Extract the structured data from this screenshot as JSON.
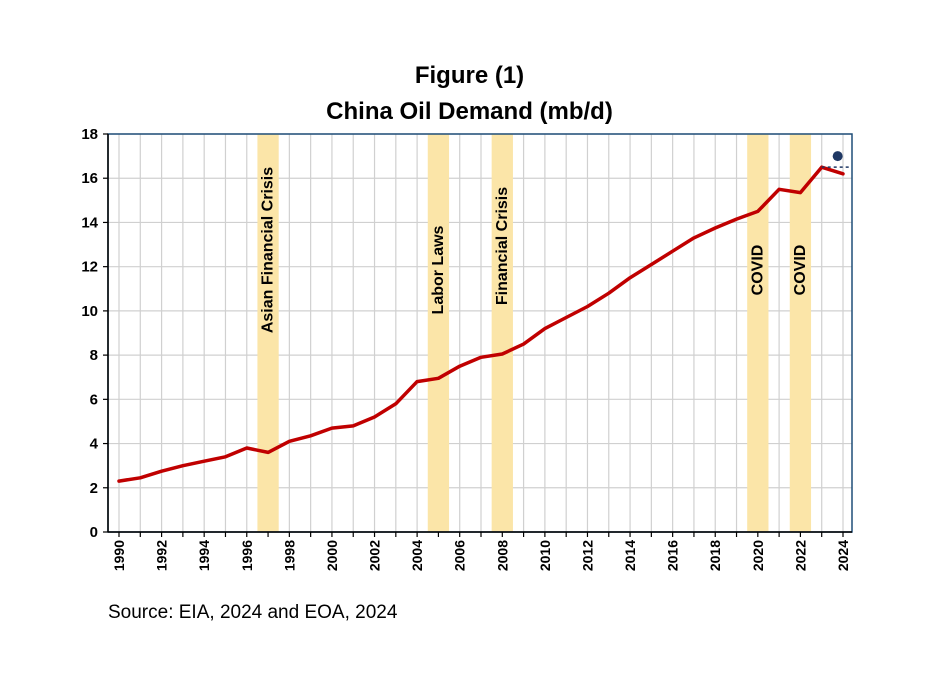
{
  "title_line1": "Figure (1)",
  "title_line2": "China Oil Demand (mb/d)",
  "source": "Source: EIA, 2024 and EOA, 2024",
  "chart_data": {
    "type": "line",
    "title": "Figure (1) China Oil Demand (mb/d)",
    "xlabel": "",
    "ylabel": "",
    "xlim": [
      1990,
      2024
    ],
    "ylim": [
      0,
      18
    ],
    "yticks": [
      0,
      2,
      4,
      6,
      8,
      10,
      12,
      14,
      16,
      18
    ],
    "xtick_labels": [
      "1990",
      "1992",
      "1994",
      "1996",
      "1998",
      "2000",
      "2002",
      "2004",
      "2006",
      "2008",
      "2010",
      "2012",
      "2014",
      "2016",
      "2018",
      "2020",
      "2022",
      "2024"
    ],
    "grid": true,
    "line_color": "#C00000",
    "band_color": "#FBE5A8",
    "series": [
      {
        "x": [
          1990,
          1991,
          1992,
          1993,
          1994,
          1995,
          1996,
          1997,
          1998,
          1999,
          2000,
          2001,
          2002,
          2003,
          2004,
          2005,
          2006,
          2007,
          2008,
          2009,
          2010,
          2011,
          2012,
          2013,
          2014,
          2015,
          2016,
          2017,
          2018,
          2019,
          2020,
          2021,
          2022,
          2023,
          2024
        ],
        "values": [
          2.3,
          2.45,
          2.75,
          3.0,
          3.2,
          3.4,
          3.8,
          3.6,
          4.1,
          4.35,
          4.7,
          4.8,
          5.2,
          5.8,
          6.8,
          6.95,
          7.5,
          7.9,
          8.05,
          8.5,
          9.2,
          9.7,
          10.2,
          10.8,
          11.5,
          12.1,
          12.7,
          13.3,
          13.75,
          14.15,
          14.5,
          15.5,
          15.35,
          16.5,
          16.2
        ]
      }
    ],
    "bands": [
      {
        "start": 1996.5,
        "end": 1997.5,
        "label": "Asian Financial Crisis"
      },
      {
        "start": 2004.5,
        "end": 2005.5,
        "label": "Labor Laws"
      },
      {
        "start": 2007.5,
        "end": 2008.5,
        "label": "Financial Crisis"
      },
      {
        "start": 2019.5,
        "end": 2020.5,
        "label": "COVID"
      },
      {
        "start": 2021.5,
        "end": 2022.5,
        "label": "COVID"
      }
    ],
    "marker": {
      "x": 2023.75,
      "y": 17.0,
      "ref_y": 16.5,
      "ref_x_start": 2023.0,
      "color": "#1F3864"
    }
  }
}
